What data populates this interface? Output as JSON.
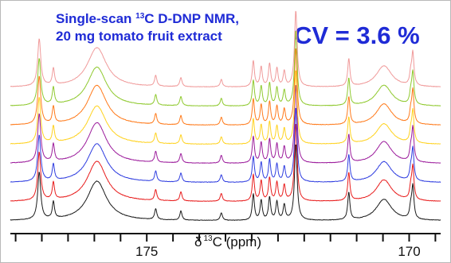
{
  "chart_data": {
    "type": "line",
    "title_line1_prefix": "Single-scan ",
    "title_line1_sup": "13",
    "title_line1_suffix": "C D-DNP NMR,",
    "title_line2": "20 mg tomato fruit extract",
    "annotation": "CV = 3.6 %",
    "xlabel_symbol": "δ",
    "xlabel_sup": "13",
    "xlabel_text": "C (ppm)",
    "x_reversed": true,
    "xlim": [
      177.6,
      169.4
    ],
    "x_ticks": [
      {
        "value": 175,
        "label": "175"
      },
      {
        "value": 170,
        "label": "170"
      }
    ],
    "minor_tick_step": 0.5,
    "peaks": [
      {
        "ppm": 177.05,
        "height": 0.62,
        "width": 0.035
      },
      {
        "ppm": 176.78,
        "height": 0.22,
        "width": 0.025
      },
      {
        "ppm": 175.95,
        "height": 0.52,
        "width": 0.22
      },
      {
        "ppm": 174.83,
        "height": 0.14,
        "width": 0.025
      },
      {
        "ppm": 174.35,
        "height": 0.12,
        "width": 0.025
      },
      {
        "ppm": 173.58,
        "height": 0.1,
        "width": 0.025
      },
      {
        "ppm": 172.97,
        "height": 0.34,
        "width": 0.025
      },
      {
        "ppm": 172.82,
        "height": 0.26,
        "width": 0.025
      },
      {
        "ppm": 172.66,
        "height": 0.3,
        "width": 0.025
      },
      {
        "ppm": 172.52,
        "height": 0.24,
        "width": 0.025
      },
      {
        "ppm": 172.38,
        "height": 0.2,
        "width": 0.025
      },
      {
        "ppm": 172.16,
        "height": 1.0,
        "width": 0.03
      },
      {
        "ppm": 171.15,
        "height": 0.36,
        "width": 0.025
      },
      {
        "ppm": 170.48,
        "height": 0.28,
        "width": 0.18
      },
      {
        "ppm": 169.93,
        "height": 0.42,
        "width": 0.025
      },
      {
        "ppm": 169.97,
        "height": 0.14,
        "width": 0.025
      }
    ],
    "series": [
      {
        "color": "#1a1a1a",
        "scale": 1.0
      },
      {
        "color": "#e81c1c",
        "scale": 1.02
      },
      {
        "color": "#2f3de0",
        "scale": 0.98
      },
      {
        "color": "#9c1c9c",
        "scale": 1.03
      },
      {
        "color": "#ffd21f",
        "scale": 0.97
      },
      {
        "color": "#ff7a1a",
        "scale": 1.01
      },
      {
        "color": "#8fc92e",
        "scale": 0.99
      },
      {
        "color": "#f09a9a",
        "scale": 1.0
      }
    ]
  }
}
